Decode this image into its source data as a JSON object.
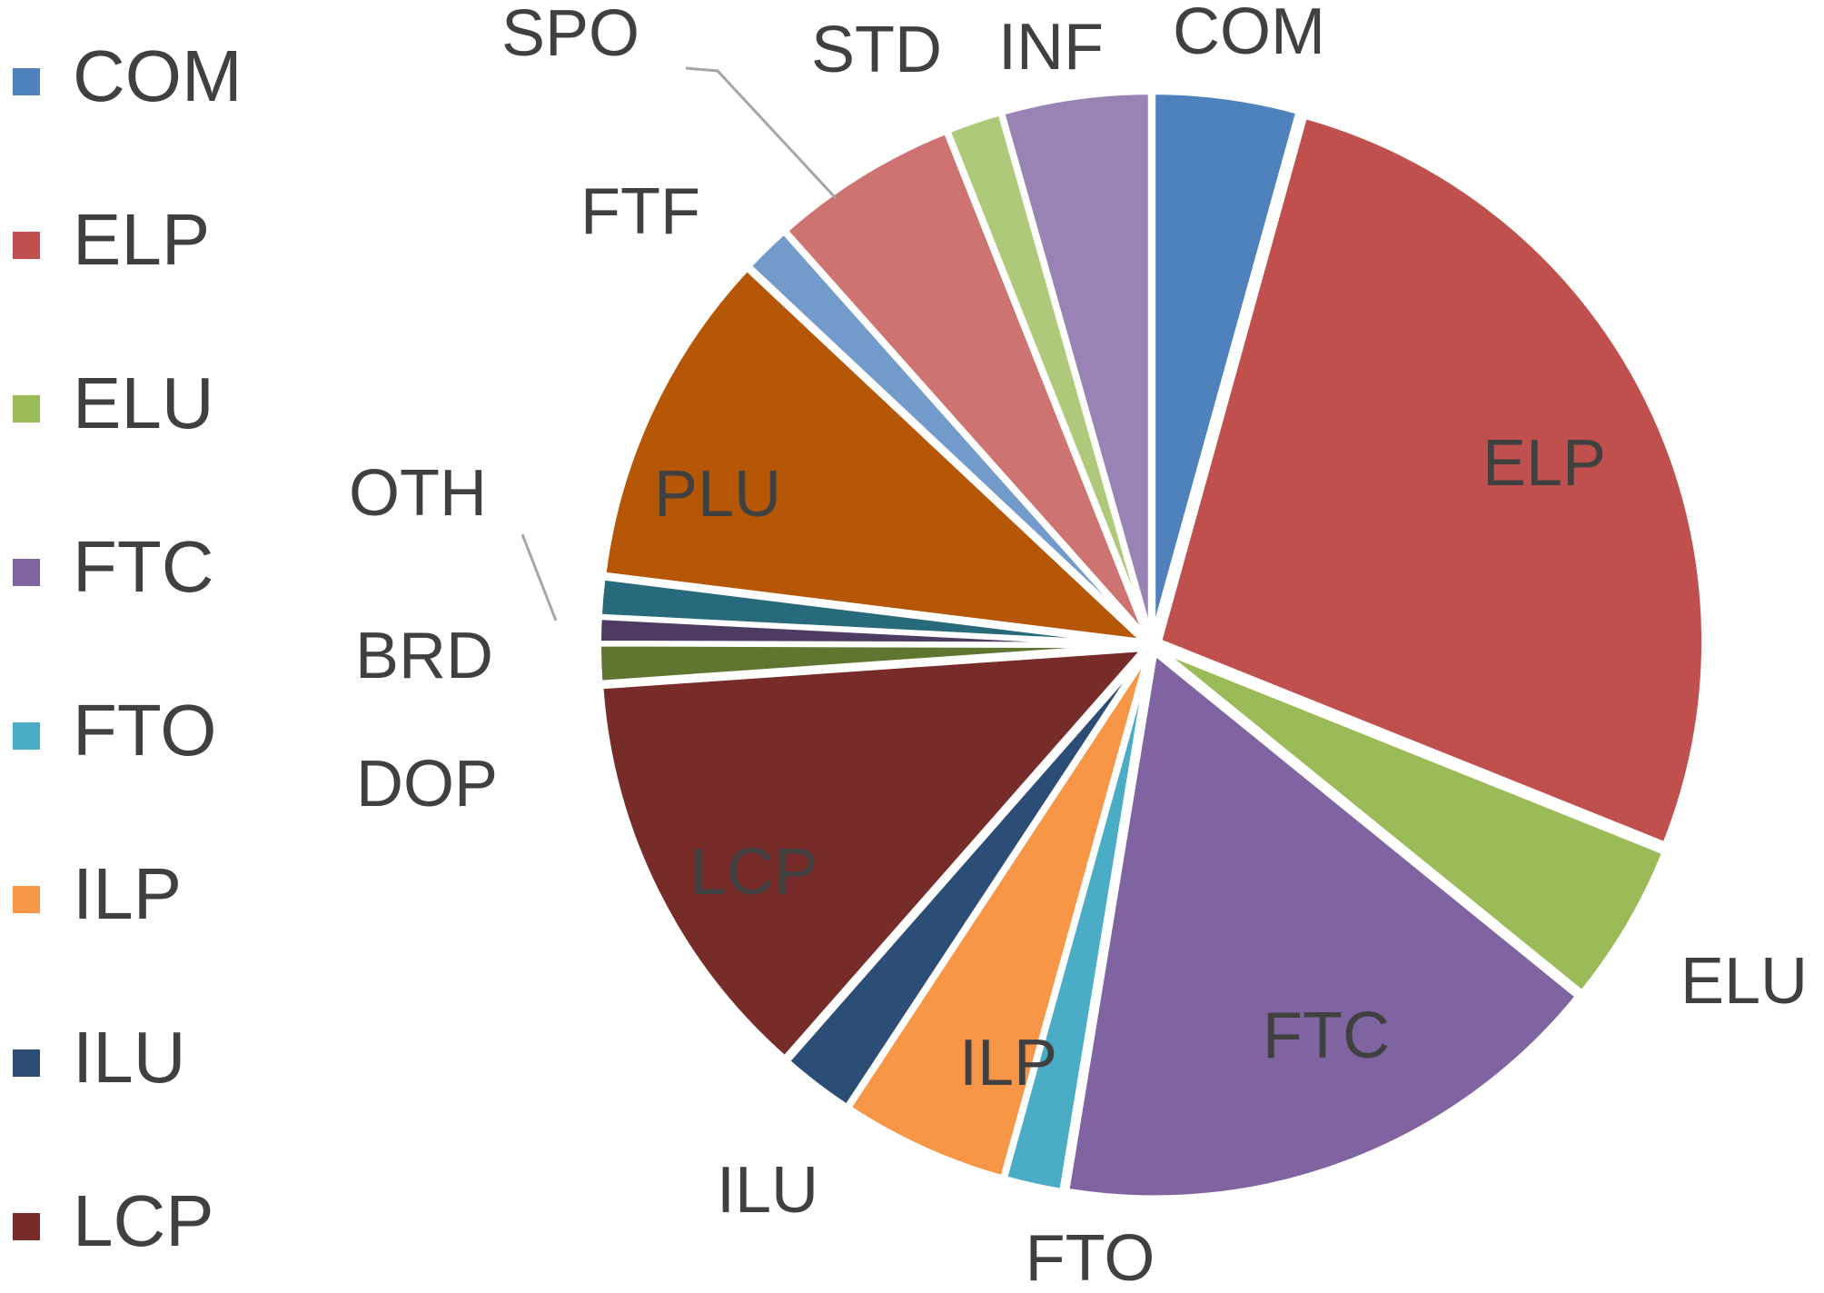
{
  "chart_data": {
    "type": "pie",
    "title": "",
    "legend_position": "left",
    "legend": [
      "COM",
      "ELP",
      "ELU",
      "FTC",
      "FTO",
      "ILP",
      "ILU",
      "LCP"
    ],
    "slices": [
      {
        "label": "COM",
        "value": 4.5,
        "color": "#4f81bd"
      },
      {
        "label": "ELP",
        "value": 28.0,
        "color": "#c0504d"
      },
      {
        "label": "ELU",
        "value": 5.0,
        "color": "#9bbb59"
      },
      {
        "label": "FTC",
        "value": 17.5,
        "color": "#8064a2"
      },
      {
        "label": "FTO",
        "value": 1.8,
        "color": "#4bacc6"
      },
      {
        "label": "ILP",
        "value": 5.2,
        "color": "#f79646"
      },
      {
        "label": "ILU",
        "value": 2.3,
        "color": "#2c4d75"
      },
      {
        "label": "LCP",
        "value": 13.0,
        "color": "#772c2a"
      },
      {
        "label": "DOP",
        "value": 1.2,
        "color": "#5f7530"
      },
      {
        "label": "BRD",
        "value": 0.8,
        "color": "#4d3b62"
      },
      {
        "label": "OTH",
        "value": 1.2,
        "color": "#276a7c"
      },
      {
        "label": "PLU",
        "value": 10.5,
        "color": "#b65708"
      },
      {
        "label": "FTF",
        "value": 1.5,
        "color": "#729aca"
      },
      {
        "label": "SPO",
        "value": 5.8,
        "color": "#cd7371"
      },
      {
        "label": "STD",
        "value": 1.7,
        "color": "#afc97a"
      },
      {
        "label": "INF",
        "value": 4.6,
        "color": "#9983b5"
      }
    ]
  }
}
